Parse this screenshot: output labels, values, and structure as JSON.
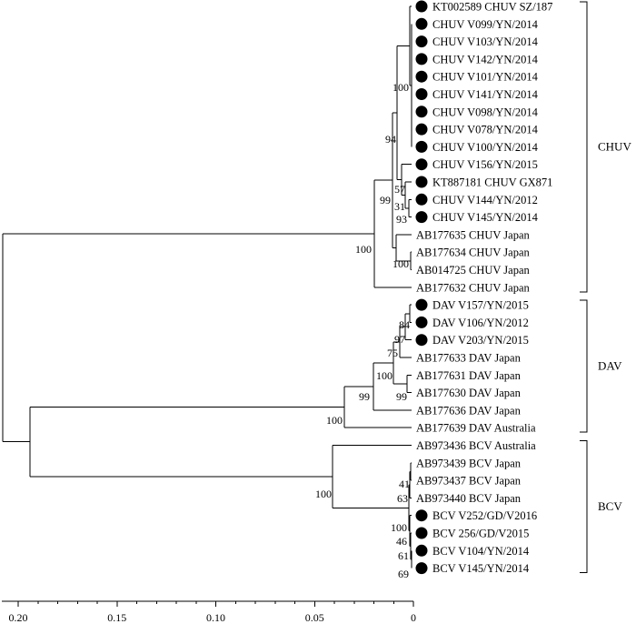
{
  "figure": {
    "leaves": [
      {
        "name": "KT002589 CHUV SZ/187",
        "marked": true
      },
      {
        "name": "CHUV V099/YN/2014",
        "marked": true
      },
      {
        "name": "CHUV V103/YN/2014",
        "marked": true
      },
      {
        "name": "CHUV V142/YN/2014",
        "marked": true
      },
      {
        "name": "CHUV V101/YN/2014",
        "marked": true
      },
      {
        "name": "CHUV V141/YN/2014",
        "marked": true
      },
      {
        "name": "CHUV V098/YN/2014",
        "marked": true
      },
      {
        "name": "CHUV V078/YN/2014",
        "marked": true
      },
      {
        "name": "CHUV V100/YN/2014",
        "marked": true
      },
      {
        "name": "CHUV V156/YN/2015",
        "marked": true
      },
      {
        "name": "KT887181 CHUV GX871",
        "marked": true
      },
      {
        "name": "CHUV V144/YN/2012",
        "marked": true
      },
      {
        "name": "CHUV V145/YN/2014",
        "marked": true
      },
      {
        "name": "AB177635 CHUV Japan",
        "marked": false
      },
      {
        "name": "AB177634 CHUV Japan",
        "marked": false
      },
      {
        "name": "AB014725 CHUV Japan",
        "marked": false
      },
      {
        "name": "AB177632 CHUV Japan",
        "marked": false
      },
      {
        "name": "DAV V157/YN/2015",
        "marked": true
      },
      {
        "name": "DAV V106/YN/2012",
        "marked": true
      },
      {
        "name": "DAV V203/YN/2015",
        "marked": true
      },
      {
        "name": "AB177633 DAV Japan",
        "marked": false
      },
      {
        "name": "AB177631 DAV Japan",
        "marked": false
      },
      {
        "name": "AB177630 DAV Japan",
        "marked": false
      },
      {
        "name": "AB177636 DAV Japan",
        "marked": false
      },
      {
        "name": "AB177639 DAV Australia",
        "marked": false
      },
      {
        "name": "AB973436 BCV Australia",
        "marked": false
      },
      {
        "name": "AB973439 BCV Japan",
        "marked": false
      },
      {
        "name": "AB973437 BCV Japan",
        "marked": false
      },
      {
        "name": "AB973440 BCV Japan",
        "marked": false
      },
      {
        "name": "BCV V252/GD/V2016",
        "marked": true
      },
      {
        "name": "BCV 256/GD/V2015",
        "marked": true
      },
      {
        "name": "BCV V104/YN/2014",
        "marked": true
      },
      {
        "name": "BCV V145/YN/2014",
        "marked": true
      }
    ],
    "bootstrap": [
      {
        "value": "100",
        "node": "chuv-main"
      },
      {
        "value": "94",
        "node": "chuv-94"
      },
      {
        "value": "57",
        "node": "chuv-57"
      },
      {
        "value": "31",
        "node": "chuv-31"
      },
      {
        "value": "93",
        "node": "chuv-93"
      },
      {
        "value": "99",
        "node": "chuv-99"
      },
      {
        "value": "100",
        "node": "chuv-japan"
      },
      {
        "value": "100",
        "node": "root-chuv"
      },
      {
        "value": "84",
        "node": "dav-84"
      },
      {
        "value": "97",
        "node": "dav-97"
      },
      {
        "value": "75",
        "node": "dav-75"
      },
      {
        "value": "100",
        "node": "dav-100a"
      },
      {
        "value": "99",
        "node": "dav-99a"
      },
      {
        "value": "99",
        "node": "dav-99b"
      },
      {
        "value": "100",
        "node": "dav-root"
      },
      {
        "value": "41",
        "node": "bcv-41"
      },
      {
        "value": "63",
        "node": "bcv-63"
      },
      {
        "value": "100",
        "node": "bcv-main"
      },
      {
        "value": "100",
        "node": "bcv-100b"
      },
      {
        "value": "46",
        "node": "bcv-46"
      },
      {
        "value": "61",
        "node": "bcv-61"
      },
      {
        "value": "69",
        "node": "bcv-69"
      }
    ],
    "clades": [
      {
        "label": "CHUV",
        "from_leaf": 0,
        "to_leaf": 16
      },
      {
        "label": "DAV",
        "from_leaf": 17,
        "to_leaf": 24
      },
      {
        "label": "BCV",
        "from_leaf": 25,
        "to_leaf": 32
      }
    ],
    "axis": {
      "ticks": [
        "0.20",
        "0.15",
        "0.10",
        "0.05",
        "0"
      ],
      "tick_values": [
        0.2,
        0.15,
        0.1,
        0.05,
        0
      ],
      "minor_step": 0.01,
      "range": [
        0.2,
        0
      ]
    }
  }
}
